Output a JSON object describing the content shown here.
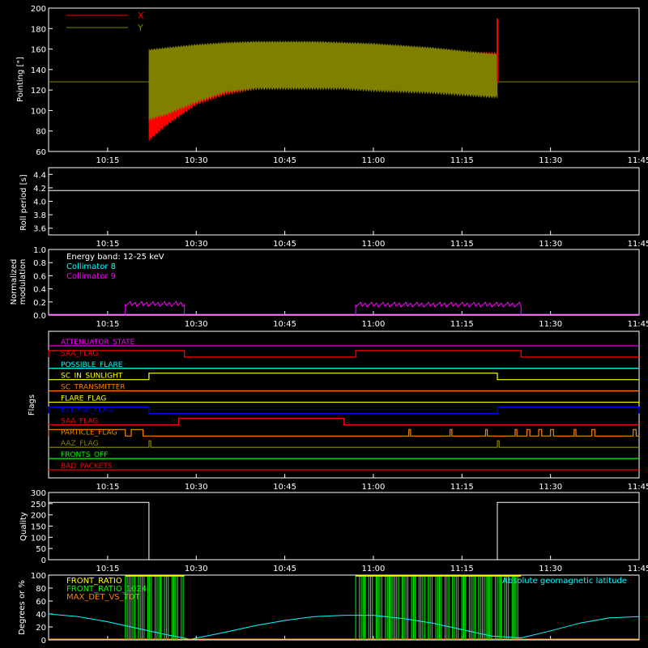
{
  "time_axis": {
    "start": "10:05",
    "end": "11:45",
    "ticks": [
      "10:15",
      "10:30",
      "10:45",
      "11:00",
      "11:15",
      "11:30",
      "11:45"
    ]
  },
  "chart_data": [
    {
      "id": "pointing",
      "type": "line",
      "ylabel": "Pointing [\"]",
      "ylim": [
        60,
        200
      ],
      "yticks": [
        "60",
        "80",
        "100",
        "120",
        "140",
        "160",
        "180",
        "200"
      ],
      "legend": [
        {
          "label": "X",
          "color": "#ff0000"
        },
        {
          "label": "Y",
          "color": "#808000"
        }
      ],
      "baseline_before_start": 128,
      "data_start": "10:22",
      "data_end": "11:21",
      "series": [
        {
          "name": "X",
          "color": "#ff0000",
          "times": [
            "10:22",
            "10:25",
            "10:30",
            "10:35",
            "10:40",
            "10:45",
            "10:50",
            "10:55",
            "11:00",
            "11:05",
            "11:10",
            "11:15",
            "11:20"
          ],
          "upper": [
            145,
            149,
            157,
            163,
            165,
            165,
            165,
            164,
            163,
            161,
            160,
            158,
            157
          ],
          "lower": [
            70,
            85,
            105,
            115,
            120,
            124,
            128,
            132,
            136,
            135,
            134,
            128,
            125
          ]
        },
        {
          "name": "Y",
          "color": "#808000",
          "times": [
            "10:22",
            "10:25",
            "10:30",
            "10:35",
            "10:40",
            "10:45",
            "10:50",
            "10:55",
            "11:00",
            "11:05",
            "11:10",
            "11:15",
            "11:20"
          ],
          "upper": [
            160,
            162,
            165,
            167,
            168,
            168,
            168,
            167,
            166,
            164,
            162,
            159,
            156
          ],
          "lower": [
            90,
            95,
            107,
            117,
            120,
            120,
            120,
            120,
            118,
            117,
            116,
            114,
            112
          ]
        }
      ],
      "end_spike": {
        "time": "11:21",
        "value": 190
      }
    },
    {
      "id": "roll",
      "type": "line",
      "ylabel": "Roll period [s]",
      "ylim": [
        3.5,
        4.5
      ],
      "yticks": [
        "3.6",
        "3.8",
        "4.0",
        "4.2",
        "4.4"
      ],
      "series": [
        {
          "name": "",
          "color": "#ffffff",
          "times": [
            "10:05",
            "11:45"
          ],
          "values": [
            4.16,
            4.16
          ]
        }
      ]
    },
    {
      "id": "modulation",
      "type": "line",
      "ylabel": [
        "Normalized",
        "modulation"
      ],
      "ylim": [
        0,
        1.0
      ],
      "yticks": [
        "0.0",
        "0.2",
        "0.4",
        "0.6",
        "0.8",
        "1.0"
      ],
      "legend": [
        {
          "label": "Energy band: 12-25 keV",
          "color": "#ffffff"
        },
        {
          "label": "Collimator 8",
          "color": "#00ffff"
        },
        {
          "label": "Collimator 9",
          "color": "#ff00ff"
        }
      ],
      "segments": [
        {
          "start": "10:18",
          "end": "10:28",
          "level": 0.17
        },
        {
          "start": "10:57",
          "end": "11:25",
          "level": 0.16
        }
      ]
    },
    {
      "id": "flags",
      "type": "step",
      "ylabel": "Flags",
      "flags": [
        {
          "name": "ATTENUATOR_STATE",
          "color": "#ff00ff",
          "on": []
        },
        {
          "name": "SAA_FLAG",
          "color": "#ff0000",
          "on": [
            [
              "10:05",
              "10:28"
            ],
            [
              "10:57",
              "11:25"
            ]
          ]
        },
        {
          "name": "POSSIBLE_FLARE",
          "color": "#00ffff",
          "on": []
        },
        {
          "name": "SC_IN_SUNLIGHT",
          "color": "#ffff00",
          "on": [
            [
              "10:22",
              "11:21"
            ]
          ]
        },
        {
          "name": "SC_TRANSMITTER",
          "color": "#ff8000",
          "on": []
        },
        {
          "name": "FLARE_FLAG",
          "color": "#ffff00",
          "on": []
        },
        {
          "name": "ECLIPSE_FLAG",
          "color": "#0000ff",
          "on": [
            [
              "10:05",
              "10:22"
            ],
            [
              "11:21",
              "11:45"
            ]
          ]
        },
        {
          "name": "SAA_FLAG",
          "color": "#ff0000",
          "on": [
            [
              "10:27",
              "10:55"
            ]
          ]
        },
        {
          "name": "PARTICLE_FLAG",
          "color": "#ff8000",
          "on": [
            [
              "10:05",
              "10:18"
            ],
            [
              "10:19",
              "10:21"
            ],
            [
              "11:06",
              "11:06.3"
            ],
            [
              "11:13",
              "11:13.3"
            ],
            [
              "11:19",
              "11:19.3"
            ],
            [
              "11:24",
              "11:24.3"
            ],
            [
              "11:26",
              "11:26.5"
            ],
            [
              "11:28",
              "11:28.5"
            ],
            [
              "11:30",
              "11:30.5"
            ],
            [
              "11:34",
              "11:34.3"
            ],
            [
              "11:37",
              "11:37.5"
            ],
            [
              "11:44",
              "11:44.5"
            ]
          ]
        },
        {
          "name": "AAZ_FLAG",
          "color": "#808000",
          "on": [
            [
              "10:22",
              "10:22.3"
            ],
            [
              "11:21",
              "11:21.3"
            ]
          ]
        },
        {
          "name": "FRONTS_OFF",
          "color": "#00ff00",
          "on": []
        },
        {
          "name": "BAD_PACKETS",
          "color": "#ff0000",
          "on": []
        }
      ]
    },
    {
      "id": "quality",
      "type": "step",
      "ylabel": "Quality",
      "ylim": [
        0,
        300
      ],
      "yticks": [
        "0",
        "50",
        "100",
        "150",
        "200",
        "250",
        "300"
      ],
      "series": [
        {
          "name": "",
          "color": "#ffffff",
          "times": [
            "10:05",
            "10:22",
            "10:22",
            "11:21",
            "11:21",
            "11:45"
          ],
          "values": [
            256,
            256,
            0,
            0,
            256,
            256
          ]
        }
      ]
    },
    {
      "id": "geo",
      "type": "line",
      "ylabel": "Degrees or %",
      "ylim": [
        0,
        100
      ],
      "yticks": [
        "0",
        "20",
        "40",
        "60",
        "80",
        "100"
      ],
      "legend": [
        {
          "label": "FRONT_RATIO",
          "color": "#ffff00"
        },
        {
          "label": "FRONT_RATIO_1024",
          "color": "#00ff00"
        },
        {
          "label": "MAX_DET_VS_TOT",
          "color": "#ff8000"
        }
      ],
      "right_legend": {
        "label": "Absolute geomagnetic latitude",
        "color": "#00ffff"
      },
      "latitude": {
        "times": [
          "10:05",
          "10:10",
          "10:15",
          "10:20",
          "10:25",
          "10:29",
          "10:35",
          "10:40",
          "10:45",
          "10:50",
          "10:55",
          "11:00",
          "11:05",
          "11:10",
          "11:15",
          "11:20",
          "11:25",
          "11:30",
          "11:35",
          "11:40",
          "11:45"
        ],
        "values": [
          40,
          36,
          28,
          18,
          8,
          1,
          12,
          22,
          30,
          36,
          38,
          38,
          33,
          26,
          16,
          6,
          3,
          14,
          26,
          34,
          36
        ]
      },
      "ratio_blocks": [
        {
          "start": "10:18",
          "end": "10:28"
        },
        {
          "start": "10:57",
          "end": "11:25"
        }
      ]
    }
  ]
}
